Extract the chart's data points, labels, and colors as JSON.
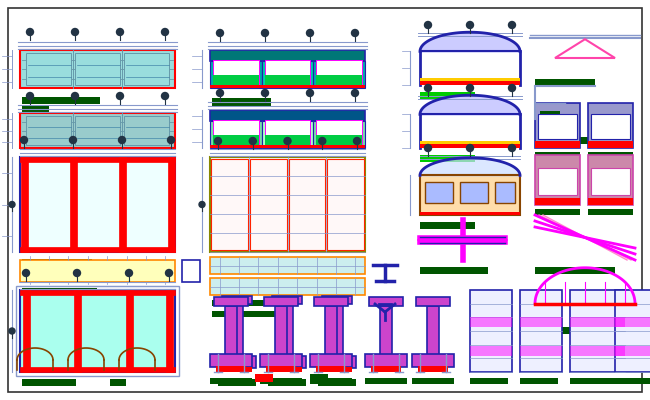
{
  "bg_color": "#ffffff",
  "border_color": "#555555",
  "colors": {
    "red": "#ff0000",
    "cyan": "#00cccc",
    "blue": "#2222aa",
    "dark_blue": "#0000bb",
    "green": "#00aa00",
    "bright_green": "#00ff00",
    "magenta": "#ff00ff",
    "teal": "#006688",
    "dark_green": "#005500",
    "orange": "#ff8800",
    "purple": "#8800cc",
    "light_blue": "#8899cc",
    "pink": "#ff44aa",
    "yellow": "#ffff00",
    "dark_gray": "#444444",
    "med_gray": "#888888",
    "brown": "#884400",
    "light_cyan": "#aaffee",
    "teal_fill": "#55cccc",
    "teal_dark": "#008888"
  }
}
